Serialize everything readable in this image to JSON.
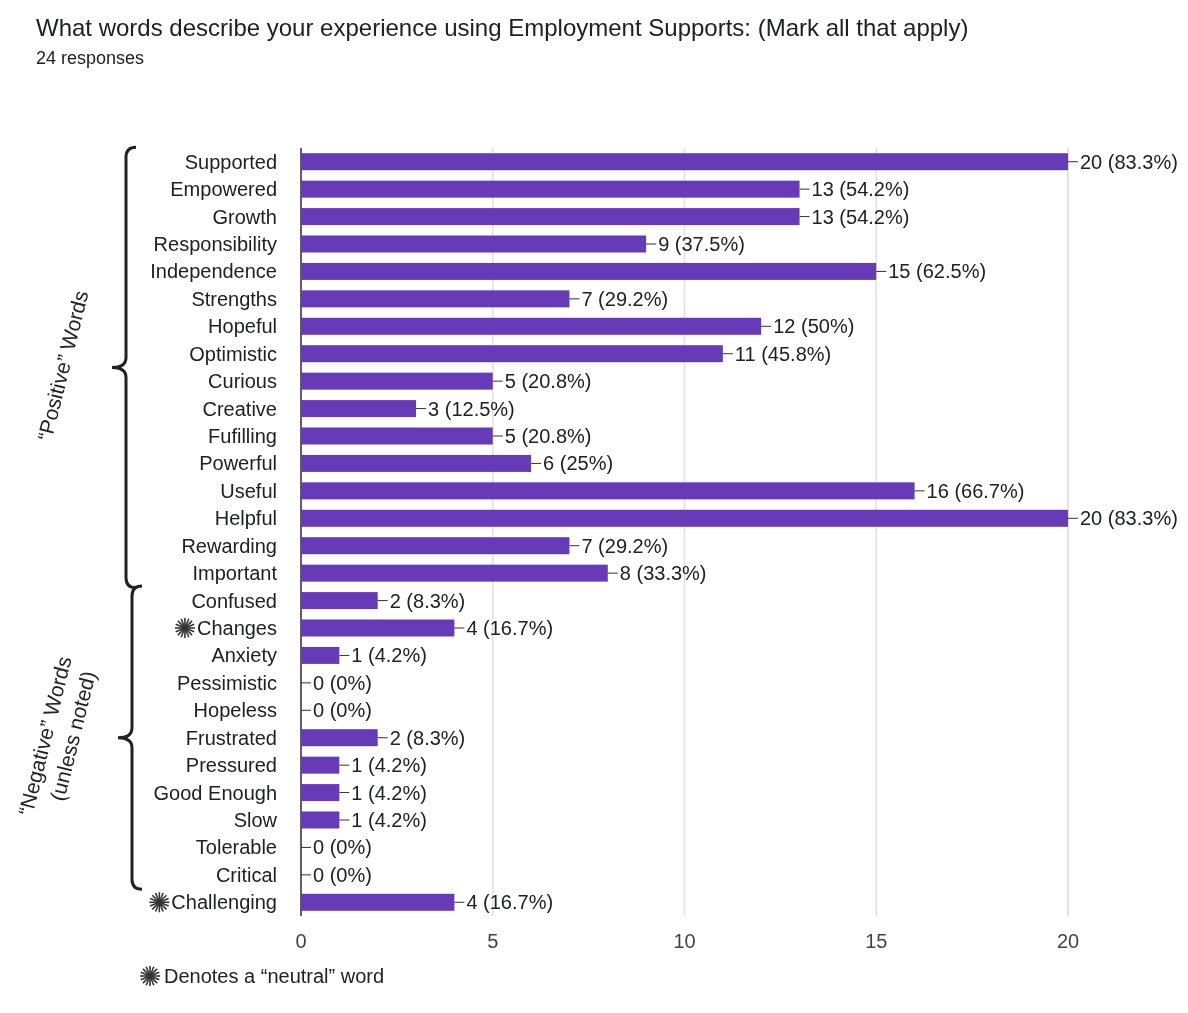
{
  "chart_data": {
    "type": "bar",
    "orientation": "horizontal",
    "title": "What words describe your experience using Employment Supports: (Mark all that apply)",
    "subtitle": "24 responses",
    "categories": [
      "Supported",
      "Empowered",
      "Growth",
      "Responsibility",
      "Independence",
      "Strengths",
      "Hopeful",
      "Optimistic",
      "Curious",
      "Creative",
      "Fufilling",
      "Powerful",
      "Useful",
      "Helpful",
      "Rewarding",
      "Important",
      "Confused",
      "Changes",
      "Anxiety",
      "Pessimistic",
      "Hopeless",
      "Frustrated",
      "Pressured",
      "Good Enough",
      "Slow",
      "Tolerable",
      "Critical",
      "Challenging"
    ],
    "values": [
      20,
      13,
      13,
      9,
      15,
      7,
      12,
      11,
      5,
      3,
      5,
      6,
      16,
      20,
      7,
      8,
      2,
      4,
      1,
      0,
      0,
      2,
      1,
      1,
      1,
      0,
      0,
      4
    ],
    "value_labels": [
      "20 (83.3%)",
      "13 (54.2%)",
      "13 (54.2%)",
      "9 (37.5%)",
      "15 (62.5%)",
      "7 (29.2%)",
      "12 (50%)",
      "11 (45.8%)",
      "5 (20.8%)",
      "3 (12.5%)",
      "5 (20.8%)",
      "6 (25%)",
      "16 (66.7%)",
      "20 (83.3%)",
      "7 (29.2%)",
      "8 (33.3%)",
      "2 (8.3%)",
      "4 (16.7%)",
      "1 (4.2%)",
      "0 (0%)",
      "0 (0%)",
      "2 (8.3%)",
      "1 (4.2%)",
      "1 (4.2%)",
      "1 (4.2%)",
      "0 (0%)",
      "0 (0%)",
      "4 (16.7%)"
    ],
    "color": "#673ab7",
    "xlim": [
      0,
      20
    ],
    "xticks": [
      0,
      5,
      10,
      15,
      20
    ],
    "grid": "x",
    "annotations": [
      "“Positive” Words",
      "“Negative” Words\n(unless noted)",
      "Denotes a “neutral” word"
    ]
  }
}
